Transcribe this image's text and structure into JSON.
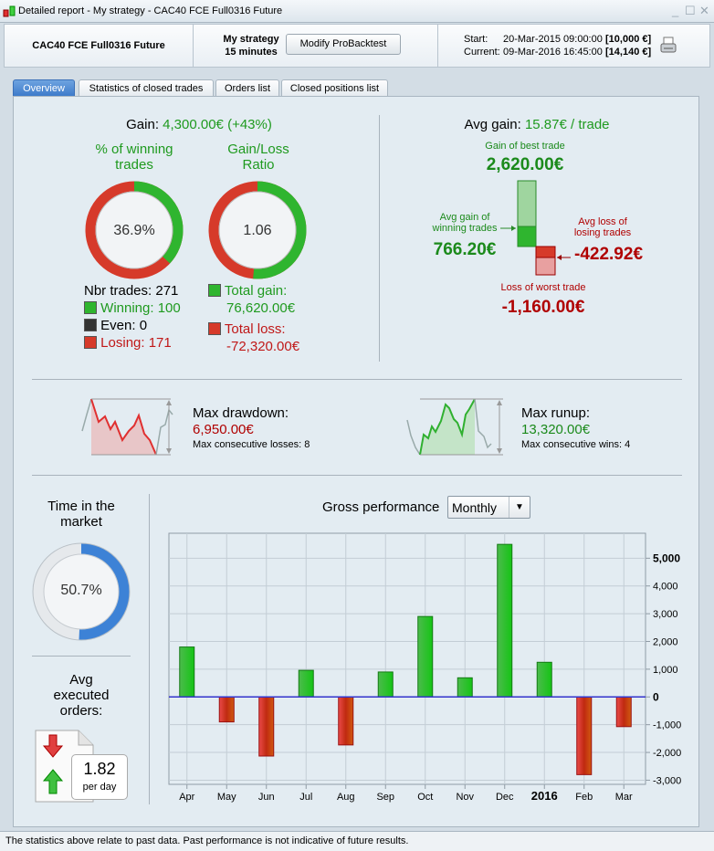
{
  "window": {
    "title": "Detailed report - My strategy - CAC40 FCE Full0316 Future",
    "icon": "candlestick-icon"
  },
  "header": {
    "instrument": "CAC40 FCE Full0316 Future",
    "strategy_name": "My strategy",
    "timeframe": "15 minutes",
    "modify_button": "Modify ProBacktest",
    "start_label": "Start:",
    "start_date": "20-Mar-2015 09:00:00",
    "start_capital": "[10,000 €]",
    "current_label": "Current:",
    "current_date": "09-Mar-2016 16:45:00",
    "current_capital": "[14,140 €]"
  },
  "tabs": [
    "Overview",
    "Statistics of closed trades",
    "Orders list",
    "Closed positions list"
  ],
  "gain": {
    "label": "Gain:",
    "value": "4,300.00€ (+43%)"
  },
  "winning": {
    "title_line1": "% of winning",
    "title_line2": "trades",
    "value": "36.9%",
    "fraction": 0.369
  },
  "ratio": {
    "title_line1": "Gain/Loss",
    "title_line2": "Ratio",
    "value": "1.06",
    "fraction": 0.514
  },
  "trades": {
    "nbr": "Nbr trades: 271",
    "winning": "Winning: 100",
    "even": "Even: 0",
    "losing": "Losing: 171"
  },
  "totals": {
    "gain_label": "Total gain:",
    "gain_value": "76,620.00€",
    "loss_label": "Total loss:",
    "loss_value": "-72,320.00€"
  },
  "avg": {
    "label": "Avg gain:",
    "value": "15.87€ / trade",
    "best_label": "Gain of best trade",
    "best_value": "2,620.00€",
    "avg_win_label1": "Avg gain of",
    "avg_win_label2": "winning trades",
    "avg_win_value": "766.20€",
    "avg_loss_label1": "Avg loss of",
    "avg_loss_label2": "losing trades",
    "avg_loss_value": "-422.92€",
    "worst_label": "Loss of worst trade",
    "worst_value": "-1,160.00€"
  },
  "drawdown": {
    "label": "Max drawdown:",
    "value": "6,950.00€",
    "consecutive": "Max consecutive losses: 8"
  },
  "runup": {
    "label": "Max runup:",
    "value": "13,320.00€",
    "consecutive": "Max consecutive wins: 4"
  },
  "market": {
    "title_line1": "Time in the",
    "title_line2": "market",
    "value": "50.7%",
    "fraction": 0.507
  },
  "orders": {
    "title_line1": "Avg",
    "title_line2": "executed",
    "title_line3": "orders:",
    "value": "1.82",
    "unit": "per day"
  },
  "performance": {
    "title": "Gross performance",
    "period": "Monthly"
  },
  "chart_data": {
    "type": "bar",
    "title": "Gross performance",
    "categories": [
      "Apr",
      "May",
      "Jun",
      "Jul",
      "Aug",
      "Sep",
      "Oct",
      "Nov",
      "Dec",
      "2016",
      "Feb",
      "Mar"
    ],
    "values": [
      1800,
      -900,
      -2130,
      960,
      -1730,
      900,
      2900,
      690,
      5500,
      1250,
      -2800,
      -1070
    ],
    "yticks": [
      5000,
      4000,
      3000,
      2000,
      1000,
      0,
      -1000,
      -2000,
      -3000
    ],
    "ytick_labels": [
      "5,000",
      "4,000",
      "3,000",
      "2,000",
      "1,000",
      "0",
      "-1,000",
      "-2,000",
      "-3,000"
    ],
    "ylim": [
      -3150,
      5900
    ],
    "grid": true,
    "colors": {
      "positive": "#22b022",
      "negative": "#d83020"
    }
  },
  "footer": "The statistics above relate to past data. Past performance is not indicative of future results."
}
